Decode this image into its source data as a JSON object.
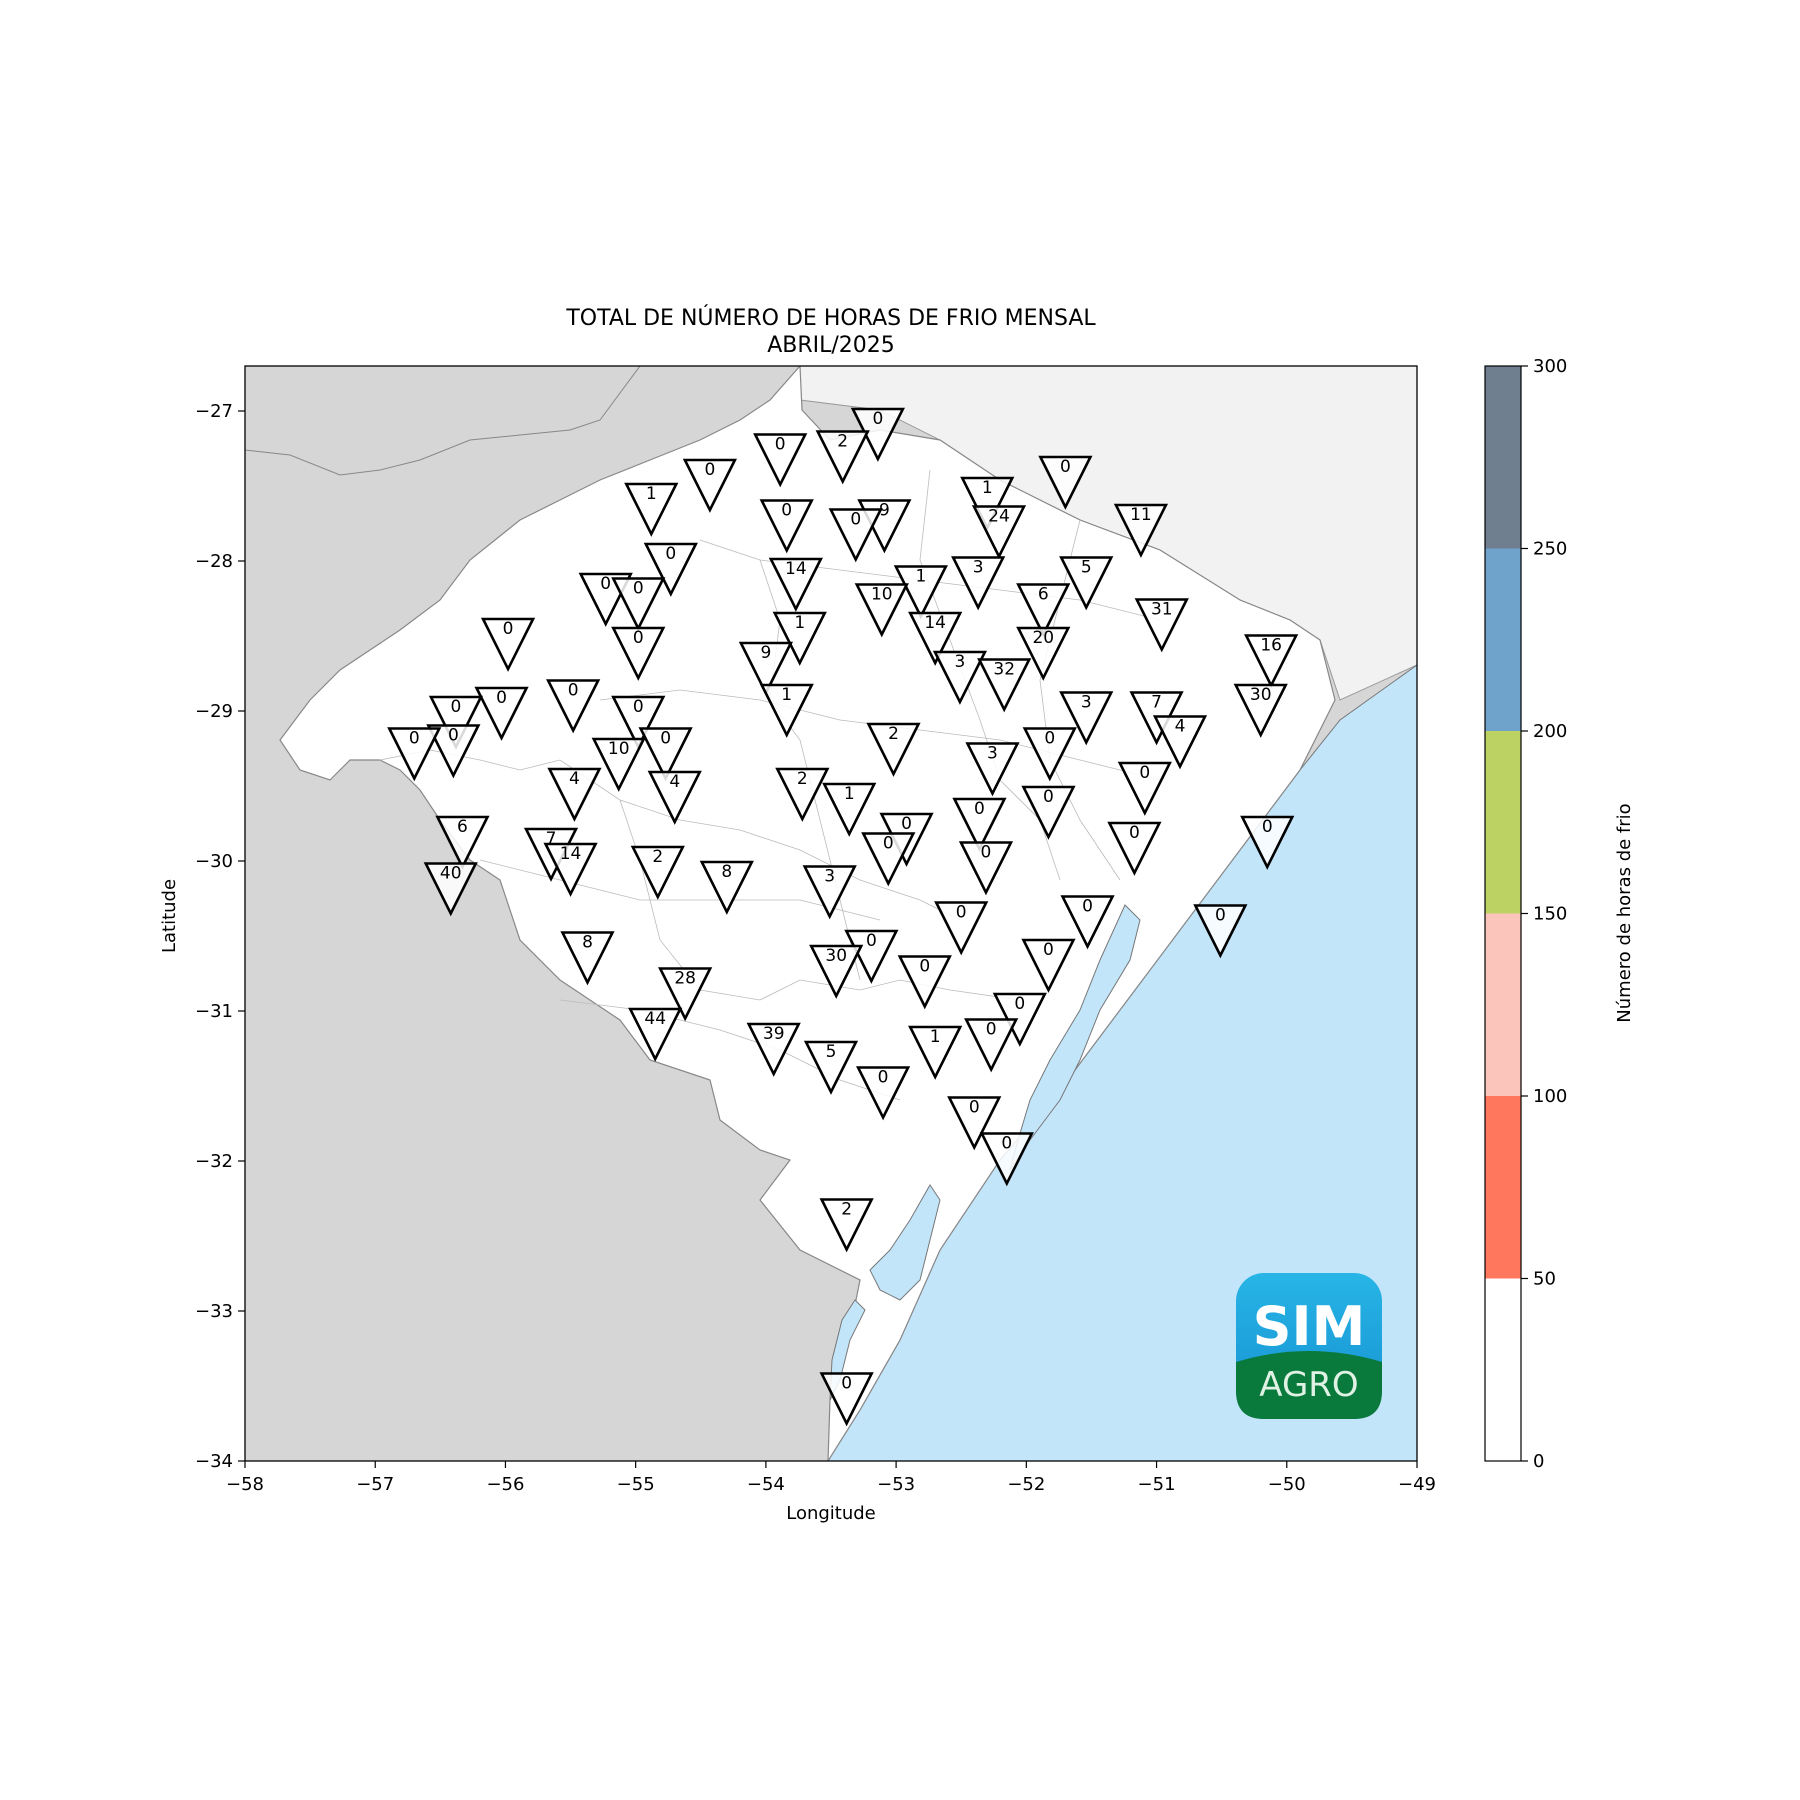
{
  "title_line1": "TOTAL DE NÚMERO DE HORAS DE FRIO MENSAL",
  "title_line2": "ABRIL/2025",
  "xlabel": "Longitude",
  "ylabel": "Latitude",
  "colorbar_label": "Número de horas de frio",
  "logo": {
    "line1": "SIM",
    "line2": "AGRO"
  },
  "colors": {
    "land_state": "#ffffff",
    "land_neighbors_w": "#d6d6d6",
    "land_neighbors_n": "#f2f2f2",
    "ocean": "#c2e5fa",
    "logo_top": "#1aa0d8",
    "logo_bottom": "#0a7a3c"
  },
  "chart_data": {
    "type": "scatter",
    "xlim": [
      -58,
      -49
    ],
    "ylim": [
      -34,
      -26.7
    ],
    "xticks": [
      -58,
      -57,
      -56,
      -55,
      -54,
      -53,
      -52,
      -51,
      -50,
      -49
    ],
    "xtick_labels": [
      "−58",
      "−57",
      "−56",
      "−55",
      "−54",
      "−53",
      "−52",
      "−51",
      "−50",
      "−49"
    ],
    "yticks": [
      -27,
      -28,
      -29,
      -30,
      -31,
      -32,
      -33,
      -34
    ],
    "ytick_labels": [
      "−27",
      "−28",
      "−29",
      "−30",
      "−31",
      "−32",
      "−33",
      "−34"
    ],
    "colorbar": {
      "ticks": [
        "0",
        "50",
        "100",
        "150",
        "200",
        "250",
        "300"
      ],
      "bins": [
        {
          "from": 0,
          "to": 50,
          "color": "#ffffff"
        },
        {
          "from": 50,
          "to": 100,
          "color": "#ff785d"
        },
        {
          "from": 100,
          "to": 150,
          "color": "#fbc5bc"
        },
        {
          "from": 150,
          "to": 200,
          "color": "#bcd364"
        },
        {
          "from": 200,
          "to": 250,
          "color": "#6fa3cc"
        },
        {
          "from": 250,
          "to": 300,
          "color": "#6f7f8f"
        }
      ]
    },
    "stations": [
      {
        "lon": -53.14,
        "lat": -27.1,
        "value": 0
      },
      {
        "lon": -53.41,
        "lat": -27.25,
        "value": 2
      },
      {
        "lon": -53.89,
        "lat": -27.27,
        "value": 0
      },
      {
        "lon": -54.43,
        "lat": -27.44,
        "value": 0
      },
      {
        "lon": -51.7,
        "lat": -27.42,
        "value": 0
      },
      {
        "lon": -54.88,
        "lat": -27.6,
        "value": 1
      },
      {
        "lon": -52.3,
        "lat": -27.56,
        "value": 1
      },
      {
        "lon": -53.84,
        "lat": -27.71,
        "value": 0
      },
      {
        "lon": -53.09,
        "lat": -27.71,
        "value": 9
      },
      {
        "lon": -53.31,
        "lat": -27.77,
        "value": 0
      },
      {
        "lon": -52.21,
        "lat": -27.75,
        "value": 24
      },
      {
        "lon": -51.12,
        "lat": -27.74,
        "value": 11
      },
      {
        "lon": -54.73,
        "lat": -28.0,
        "value": 0
      },
      {
        "lon": -53.77,
        "lat": -28.1,
        "value": 14
      },
      {
        "lon": -52.37,
        "lat": -28.09,
        "value": 3
      },
      {
        "lon": -51.54,
        "lat": -28.09,
        "value": 5
      },
      {
        "lon": -55.23,
        "lat": -28.2,
        "value": 0
      },
      {
        "lon": -54.98,
        "lat": -28.23,
        "value": 0
      },
      {
        "lon": -52.81,
        "lat": -28.15,
        "value": 1
      },
      {
        "lon": -53.11,
        "lat": -28.27,
        "value": 10
      },
      {
        "lon": -51.87,
        "lat": -28.27,
        "value": 6
      },
      {
        "lon": -50.96,
        "lat": -28.37,
        "value": 31
      },
      {
        "lon": -53.74,
        "lat": -28.46,
        "value": 1
      },
      {
        "lon": -52.7,
        "lat": -28.46,
        "value": 14
      },
      {
        "lon": -55.98,
        "lat": -28.5,
        "value": 0
      },
      {
        "lon": -54.98,
        "lat": -28.56,
        "value": 0
      },
      {
        "lon": -51.87,
        "lat": -28.56,
        "value": 20
      },
      {
        "lon": -50.12,
        "lat": -28.61,
        "value": 16
      },
      {
        "lon": -54.0,
        "lat": -28.66,
        "value": 9
      },
      {
        "lon": -52.51,
        "lat": -28.72,
        "value": 3
      },
      {
        "lon": -52.17,
        "lat": -28.77,
        "value": 32
      },
      {
        "lon": -55.48,
        "lat": -28.91,
        "value": 0
      },
      {
        "lon": -53.84,
        "lat": -28.94,
        "value": 1
      },
      {
        "lon": -56.03,
        "lat": -28.96,
        "value": 0
      },
      {
        "lon": -50.2,
        "lat": -28.94,
        "value": 30
      },
      {
        "lon": -51.54,
        "lat": -28.99,
        "value": 3
      },
      {
        "lon": -51.0,
        "lat": -28.99,
        "value": 7
      },
      {
        "lon": -56.38,
        "lat": -29.02,
        "value": 0
      },
      {
        "lon": -54.98,
        "lat": -29.02,
        "value": 0
      },
      {
        "lon": -50.82,
        "lat": -29.15,
        "value": 4
      },
      {
        "lon": -56.4,
        "lat": -29.21,
        "value": 0
      },
      {
        "lon": -56.7,
        "lat": -29.23,
        "value": 0
      },
      {
        "lon": -54.77,
        "lat": -29.23,
        "value": 0
      },
      {
        "lon": -53.02,
        "lat": -29.2,
        "value": 2
      },
      {
        "lon": -51.82,
        "lat": -29.23,
        "value": 0
      },
      {
        "lon": -55.13,
        "lat": -29.3,
        "value": 10
      },
      {
        "lon": -52.26,
        "lat": -29.33,
        "value": 3
      },
      {
        "lon": -54.7,
        "lat": -29.52,
        "value": 4
      },
      {
        "lon": -55.47,
        "lat": -29.5,
        "value": 4
      },
      {
        "lon": -53.72,
        "lat": -29.5,
        "value": 2
      },
      {
        "lon": -51.09,
        "lat": -29.46,
        "value": 0
      },
      {
        "lon": -53.36,
        "lat": -29.6,
        "value": 1
      },
      {
        "lon": -51.83,
        "lat": -29.62,
        "value": 0
      },
      {
        "lon": -52.36,
        "lat": -29.7,
        "value": 0
      },
      {
        "lon": -52.92,
        "lat": -29.8,
        "value": 0
      },
      {
        "lon": -56.33,
        "lat": -29.82,
        "value": 6
      },
      {
        "lon": -55.65,
        "lat": -29.9,
        "value": 7
      },
      {
        "lon": -51.17,
        "lat": -29.86,
        "value": 0
      },
      {
        "lon": -50.15,
        "lat": -29.82,
        "value": 0
      },
      {
        "lon": -53.06,
        "lat": -29.93,
        "value": 0
      },
      {
        "lon": -55.5,
        "lat": -30.0,
        "value": 14
      },
      {
        "lon": -54.83,
        "lat": -30.02,
        "value": 2
      },
      {
        "lon": -52.31,
        "lat": -29.99,
        "value": 0
      },
      {
        "lon": -56.42,
        "lat": -30.13,
        "value": 40
      },
      {
        "lon": -54.3,
        "lat": -30.12,
        "value": 8
      },
      {
        "lon": -53.51,
        "lat": -30.15,
        "value": 3
      },
      {
        "lon": -51.53,
        "lat": -30.35,
        "value": 0
      },
      {
        "lon": -50.51,
        "lat": -30.41,
        "value": 0
      },
      {
        "lon": -52.5,
        "lat": -30.39,
        "value": 0
      },
      {
        "lon": -55.37,
        "lat": -30.59,
        "value": 8
      },
      {
        "lon": -53.19,
        "lat": -30.58,
        "value": 0
      },
      {
        "lon": -51.83,
        "lat": -30.64,
        "value": 0
      },
      {
        "lon": -53.46,
        "lat": -30.68,
        "value": 30
      },
      {
        "lon": -52.78,
        "lat": -30.75,
        "value": 0
      },
      {
        "lon": -54.62,
        "lat": -30.83,
        "value": 28
      },
      {
        "lon": -52.05,
        "lat": -31.0,
        "value": 0
      },
      {
        "lon": -54.85,
        "lat": -31.1,
        "value": 44
      },
      {
        "lon": -53.94,
        "lat": -31.2,
        "value": 39
      },
      {
        "lon": -52.27,
        "lat": -31.17,
        "value": 0
      },
      {
        "lon": -52.7,
        "lat": -31.22,
        "value": 1
      },
      {
        "lon": -53.5,
        "lat": -31.32,
        "value": 5
      },
      {
        "lon": -53.1,
        "lat": -31.49,
        "value": 0
      },
      {
        "lon": -52.4,
        "lat": -31.69,
        "value": 0
      },
      {
        "lon": -52.15,
        "lat": -31.93,
        "value": 0
      },
      {
        "lon": -53.38,
        "lat": -32.37,
        "value": 2
      },
      {
        "lon": -53.38,
        "lat": -33.53,
        "value": 0
      }
    ]
  }
}
